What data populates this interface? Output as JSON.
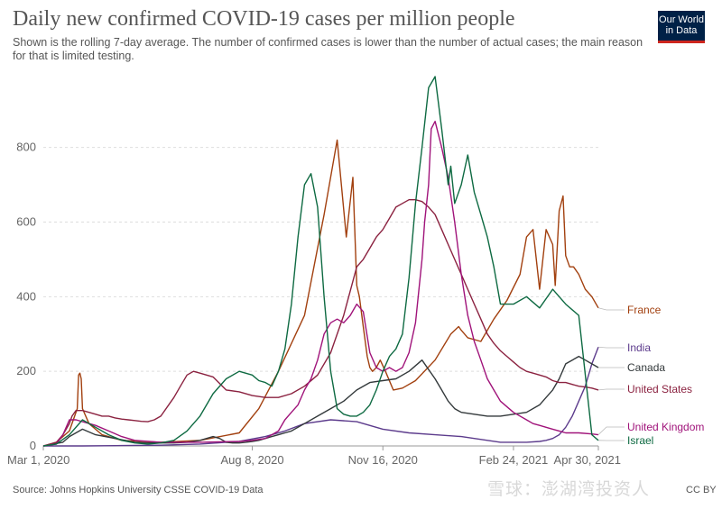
{
  "header": {
    "title": "Daily new confirmed COVID-19 cases per million people",
    "subtitle": "Shown is the rolling 7-day average. The number of confirmed cases is lower than the number of actual cases; the main reason for that is limited testing."
  },
  "logo": {
    "line1": "Our World",
    "line2": "in Data"
  },
  "footer": {
    "source": "Source: Johns Hopkins University CSSE COVID-19 Data",
    "license": "CC BY",
    "watermark": "雪球：澎湖湾投资人"
  },
  "colors": {
    "France": "#a2400f",
    "India": "#5c3b8c",
    "Canada": "#33393b",
    "United States": "#8b2240",
    "United Kingdom": "#a0137a",
    "Israel": "#0e6a42"
  },
  "chart_data": {
    "type": "line",
    "title": "Daily new confirmed COVID-19 cases per million people",
    "xlabel": "",
    "ylabel": "",
    "x_ticks": [
      "Mar 1, 2020",
      "Aug 8, 2020",
      "Nov 16, 2020",
      "Feb 24, 2021",
      "Apr 30, 2021"
    ],
    "y_ticks": [
      "0",
      "200",
      "400",
      "600",
      "800"
    ],
    "xlim": [
      0,
      425
    ],
    "ylim": [
      0,
      990
    ],
    "grid": true,
    "series": [
      {
        "name": "France",
        "x": [
          0,
          10,
          20,
          26,
          27,
          28,
          29,
          30,
          35,
          45,
          60,
          90,
          120,
          150,
          165,
          180,
          200,
          215,
          225,
          232,
          237,
          240,
          242,
          245,
          248,
          250,
          252,
          255,
          258,
          262,
          268,
          275,
          285,
          300,
          312,
          318,
          320,
          325,
          335,
          345,
          355,
          365,
          370,
          375,
          380,
          385,
          390,
          392,
          395,
          398,
          400,
          403,
          406,
          410,
          415,
          420,
          425
        ],
        "values": [
          0,
          10,
          40,
          100,
          190,
          195,
          180,
          100,
          60,
          30,
          15,
          10,
          15,
          35,
          100,
          200,
          350,
          620,
          820,
          560,
          720,
          430,
          400,
          320,
          240,
          210,
          200,
          210,
          230,
          200,
          150,
          155,
          175,
          230,
          300,
          320,
          310,
          290,
          280,
          340,
          390,
          460,
          560,
          580,
          420,
          580,
          540,
          430,
          630,
          670,
          510,
          480,
          480,
          460,
          420,
          400,
          370
        ]
      },
      {
        "name": "India",
        "x": [
          0,
          30,
          60,
          90,
          120,
          150,
          170,
          185,
          200,
          220,
          240,
          260,
          280,
          300,
          320,
          330,
          340,
          350,
          360,
          370,
          380,
          385,
          390,
          395,
          400,
          405,
          410,
          415,
          420,
          425
        ],
        "values": [
          0,
          0,
          1,
          2,
          5,
          12,
          25,
          40,
          60,
          70,
          65,
          45,
          35,
          30,
          25,
          20,
          15,
          10,
          10,
          10,
          12,
          15,
          20,
          30,
          50,
          80,
          120,
          160,
          220,
          265
        ]
      },
      {
        "name": "Canada",
        "x": [
          0,
          15,
          20,
          30,
          40,
          55,
          70,
          80,
          90,
          100,
          110,
          120,
          125,
          130,
          135,
          140,
          145,
          150,
          155,
          160,
          165,
          170,
          175,
          180,
          185,
          190,
          200,
          210,
          220,
          230,
          240,
          250,
          260,
          270,
          280,
          290,
          300,
          305,
          310,
          315,
          320,
          330,
          340,
          350,
          360,
          370,
          380,
          385,
          390,
          395,
          400,
          410,
          415,
          420,
          425
        ],
        "values": [
          0,
          10,
          25,
          45,
          30,
          20,
          10,
          8,
          8,
          8,
          10,
          15,
          20,
          25,
          20,
          10,
          8,
          8,
          10,
          12,
          15,
          20,
          25,
          30,
          35,
          40,
          60,
          80,
          100,
          120,
          150,
          170,
          175,
          180,
          200,
          230,
          180,
          150,
          120,
          100,
          90,
          85,
          80,
          80,
          85,
          90,
          110,
          130,
          150,
          180,
          220,
          240,
          230,
          220,
          210
        ]
      },
      {
        "name": "United States",
        "x": [
          0,
          10,
          15,
          20,
          22,
          25,
          30,
          35,
          40,
          45,
          50,
          55,
          60,
          65,
          70,
          75,
          80,
          85,
          90,
          100,
          105,
          110,
          115,
          120,
          125,
          130,
          140,
          150,
          160,
          170,
          180,
          190,
          200,
          210,
          220,
          230,
          240,
          245,
          250,
          255,
          260,
          265,
          270,
          275,
          280,
          285,
          290,
          295,
          300,
          305,
          310,
          315,
          320,
          325,
          330,
          335,
          340,
          345,
          350,
          355,
          360,
          365,
          370,
          375,
          380,
          385,
          390,
          395,
          400,
          405,
          410,
          415,
          420,
          425
        ],
        "values": [
          0,
          10,
          30,
          60,
          80,
          95,
          95,
          90,
          85,
          80,
          80,
          75,
          72,
          70,
          68,
          66,
          65,
          70,
          80,
          130,
          160,
          190,
          200,
          195,
          190,
          185,
          150,
          145,
          135,
          130,
          130,
          140,
          160,
          190,
          250,
          350,
          480,
          500,
          530,
          560,
          580,
          610,
          640,
          650,
          660,
          660,
          655,
          640,
          620,
          580,
          540,
          500,
          460,
          420,
          380,
          340,
          300,
          275,
          255,
          240,
          225,
          210,
          200,
          195,
          190,
          185,
          175,
          170,
          170,
          165,
          160,
          158,
          155,
          150
        ]
      },
      {
        "name": "United Kingdom",
        "x": [
          0,
          10,
          15,
          20,
          25,
          30,
          40,
          50,
          60,
          70,
          90,
          120,
          150,
          160,
          170,
          180,
          185,
          190,
          195,
          200,
          205,
          210,
          215,
          220,
          225,
          230,
          235,
          240,
          245,
          250,
          255,
          260,
          265,
          270,
          275,
          280,
          285,
          290,
          292,
          295,
          297,
          300,
          305,
          310,
          315,
          320,
          325,
          330,
          335,
          340,
          345,
          350,
          360,
          370,
          375,
          380,
          385,
          390,
          395,
          400,
          410,
          420,
          425
        ],
        "values": [
          0,
          5,
          30,
          70,
          70,
          65,
          55,
          40,
          25,
          15,
          10,
          10,
          12,
          15,
          20,
          40,
          70,
          90,
          110,
          150,
          180,
          230,
          300,
          330,
          340,
          330,
          350,
          380,
          360,
          250,
          210,
          200,
          210,
          200,
          210,
          250,
          330,
          500,
          600,
          700,
          850,
          870,
          800,
          720,
          600,
          460,
          350,
          280,
          230,
          180,
          150,
          120,
          90,
          70,
          60,
          55,
          50,
          45,
          40,
          35,
          35,
          32,
          30
        ]
      },
      {
        "name": "Israel",
        "x": [
          0,
          10,
          20,
          30,
          40,
          50,
          60,
          70,
          80,
          90,
          100,
          110,
          120,
          130,
          140,
          150,
          160,
          165,
          170,
          175,
          180,
          185,
          190,
          195,
          200,
          205,
          210,
          215,
          220,
          225,
          230,
          235,
          240,
          245,
          250,
          255,
          260,
          265,
          270,
          275,
          280,
          285,
          290,
          295,
          300,
          305,
          310,
          312,
          315,
          320,
          325,
          330,
          335,
          340,
          345,
          350,
          360,
          370,
          380,
          390,
          400,
          410,
          420,
          425
        ],
        "values": [
          0,
          5,
          30,
          70,
          50,
          30,
          15,
          8,
          5,
          8,
          15,
          40,
          80,
          140,
          180,
          200,
          190,
          175,
          170,
          160,
          200,
          260,
          380,
          560,
          700,
          730,
          640,
          400,
          200,
          100,
          85,
          80,
          80,
          90,
          110,
          150,
          200,
          240,
          260,
          300,
          450,
          650,
          800,
          960,
          990,
          850,
          700,
          750,
          650,
          700,
          780,
          680,
          620,
          560,
          480,
          380,
          380,
          400,
          370,
          420,
          380,
          350,
          30,
          15
        ]
      }
    ]
  }
}
